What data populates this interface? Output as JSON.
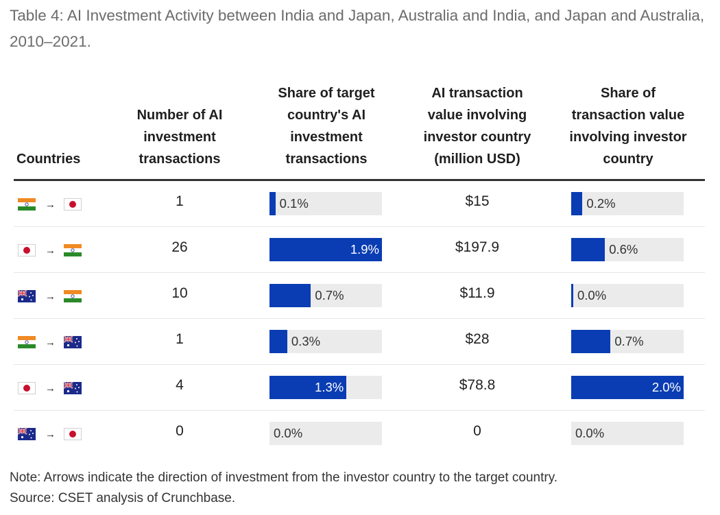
{
  "title": "Table 4: AI Investment Activity between India and Japan, Australia and India, and Japan and Australia, 2010–2021.",
  "headers": {
    "countries": "Countries",
    "num_transactions": "Number of AI investment transactions",
    "share_target": "Share of target country's AI investment transactions",
    "value_investor": "AI transaction value involving investor country (million USD)",
    "share_value": "Share of transaction value involving investor country"
  },
  "arrow": "→",
  "colors": {
    "bar": "#0a3db3",
    "track": "#ebebeb"
  },
  "rows": [
    {
      "from": "india-flag",
      "to": "japan-flag",
      "num": "1",
      "share_target": "0.1%",
      "share_target_pct": 0.1,
      "value": "$15",
      "share_value": "0.2%",
      "share_value_pct": 0.2
    },
    {
      "from": "japan-flag",
      "to": "india-flag",
      "num": "26",
      "share_target": "1.9%",
      "share_target_pct": 1.9,
      "value": "$197.9",
      "share_value": "0.6%",
      "share_value_pct": 0.6
    },
    {
      "from": "australia-flag",
      "to": "india-flag",
      "num": "10",
      "share_target": "0.7%",
      "share_target_pct": 0.7,
      "value": "$11.9",
      "share_value": "0.0%",
      "share_value_pct": 0.02
    },
    {
      "from": "india-flag",
      "to": "australia-flag",
      "num": "1",
      "share_target": "0.3%",
      "share_target_pct": 0.3,
      "value": "$28",
      "share_value": "0.7%",
      "share_value_pct": 0.7
    },
    {
      "from": "japan-flag",
      "to": "australia-flag",
      "num": "4",
      "share_target": "1.3%",
      "share_target_pct": 1.3,
      "value": "$78.8",
      "share_value": "2.0%",
      "share_value_pct": 2.0
    },
    {
      "from": "australia-flag",
      "to": "japan-flag",
      "num": "0",
      "share_target": "0.0%",
      "share_target_pct": 0.0,
      "value": "0",
      "share_value": "0.0%",
      "share_value_pct": 0.0
    }
  ],
  "bar_scale_max": {
    "share_target": 1.9,
    "share_value": 2.0
  },
  "note": "Note: Arrows indicate the direction of investment from the investor country to the target country.",
  "source": "Source: CSET analysis of Crunchbase."
}
